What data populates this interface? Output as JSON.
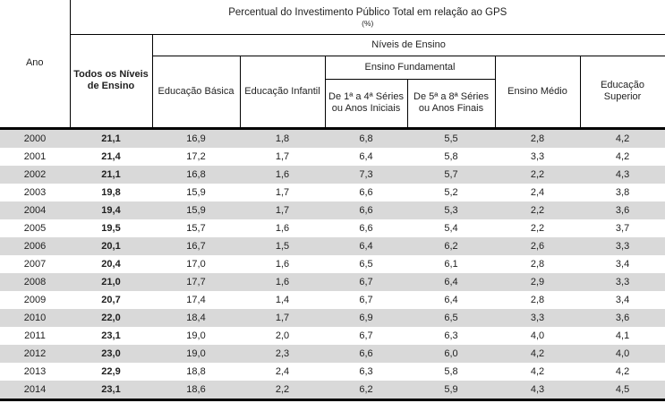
{
  "table": {
    "header": {
      "ano": "Ano",
      "title": "Percentual do Investimento Público Total em relação ao GPS",
      "title_unit": "(%)",
      "todos": "Todos os Níveis de Ensino",
      "niveis": "Níveis de Ensino",
      "basica": "Educação Básica",
      "infantil": "Educação Infantil",
      "fundamental": "Ensino Fundamental",
      "anos_iniciais": "De 1ª a 4ª Séries ou Anos Iniciais",
      "anos_finais": "De 5ª a 8ª Séries ou Anos Finais",
      "medio": "Ensino Médio",
      "superior": "Educação Superior"
    },
    "rows": [
      [
        "2000",
        "21,1",
        "16,9",
        "1,8",
        "6,8",
        "5,5",
        "2,8",
        "4,2"
      ],
      [
        "2001",
        "21,4",
        "17,2",
        "1,7",
        "6,4",
        "5,8",
        "3,3",
        "4,2"
      ],
      [
        "2002",
        "21,1",
        "16,8",
        "1,6",
        "7,3",
        "5,7",
        "2,2",
        "4,3"
      ],
      [
        "2003",
        "19,8",
        "15,9",
        "1,7",
        "6,6",
        "5,2",
        "2,4",
        "3,8"
      ],
      [
        "2004",
        "19,4",
        "15,9",
        "1,7",
        "6,6",
        "5,3",
        "2,2",
        "3,6"
      ],
      [
        "2005",
        "19,5",
        "15,7",
        "1,6",
        "6,6",
        "5,4",
        "2,2",
        "3,7"
      ],
      [
        "2006",
        "20,1",
        "16,7",
        "1,5",
        "6,4",
        "6,2",
        "2,6",
        "3,3"
      ],
      [
        "2007",
        "20,4",
        "17,0",
        "1,6",
        "6,5",
        "6,1",
        "2,8",
        "3,4"
      ],
      [
        "2008",
        "21,0",
        "17,7",
        "1,6",
        "6,7",
        "6,4",
        "2,9",
        "3,3"
      ],
      [
        "2009",
        "20,7",
        "17,4",
        "1,4",
        "6,7",
        "6,4",
        "2,8",
        "3,4"
      ],
      [
        "2010",
        "22,0",
        "18,4",
        "1,7",
        "6,9",
        "6,5",
        "3,3",
        "3,6"
      ],
      [
        "2011",
        "23,1",
        "19,0",
        "2,0",
        "6,7",
        "6,3",
        "4,0",
        "4,1"
      ],
      [
        "2012",
        "23,0",
        "19,0",
        "2,3",
        "6,6",
        "6,0",
        "4,2",
        "4,0"
      ],
      [
        "2013",
        "22,9",
        "18,8",
        "2,4",
        "6,3",
        "5,8",
        "4,2",
        "4,2"
      ],
      [
        "2014",
        "23,1",
        "18,6",
        "2,2",
        "6,2",
        "5,9",
        "4,3",
        "4,5"
      ]
    ]
  },
  "colors": {
    "stripe": "#d9d9d9",
    "border": "#000000",
    "text": "#1f1f1f"
  }
}
